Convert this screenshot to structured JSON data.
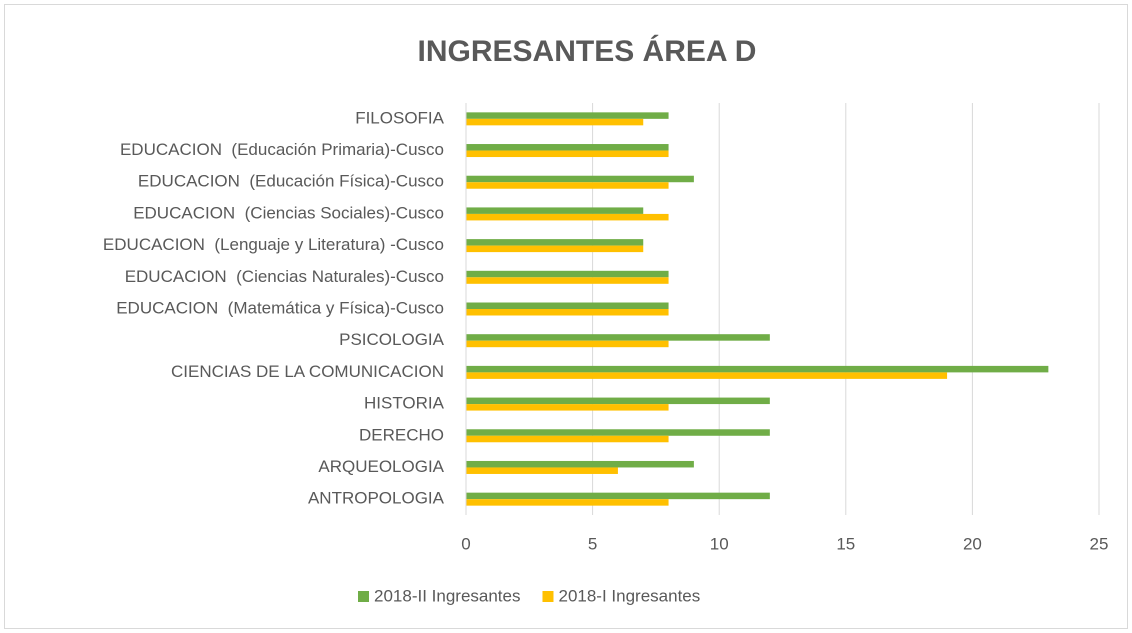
{
  "chart_data": {
    "type": "hbar",
    "title": "INGRESANTES ÁREA D",
    "categories": [
      "FILOSOFIA",
      "EDUCACION  (Educación Primaria)-Cusco",
      "EDUCACION  (Educación Física)-Cusco",
      "EDUCACION  (Ciencias Sociales)-Cusco",
      "EDUCACION  (Lenguaje y Literatura) -Cusco",
      "EDUCACION  (Ciencias Naturales)-Cusco",
      "EDUCACION  (Matemática y Física)-Cusco",
      "PSICOLOGIA",
      "CIENCIAS DE LA COMUNICACION",
      "HISTORIA",
      "DERECHO",
      "ARQUEOLOGIA",
      "ANTROPOLOGIA"
    ],
    "series": [
      {
        "name": "2018-II Ingresantes",
        "color": "#70ad47",
        "values": [
          8,
          8,
          9,
          7,
          7,
          8,
          8,
          12,
          23,
          12,
          12,
          9,
          12
        ]
      },
      {
        "name": "2018-I Ingresantes",
        "color": "#ffc000",
        "values": [
          7,
          8,
          8,
          8,
          7,
          8,
          8,
          8,
          19,
          8,
          8,
          6,
          8
        ]
      }
    ],
    "xlim": [
      0,
      25
    ],
    "xticks": [
      0,
      5,
      10,
      15,
      20,
      25
    ],
    "grid": true,
    "legend": "bottom"
  }
}
